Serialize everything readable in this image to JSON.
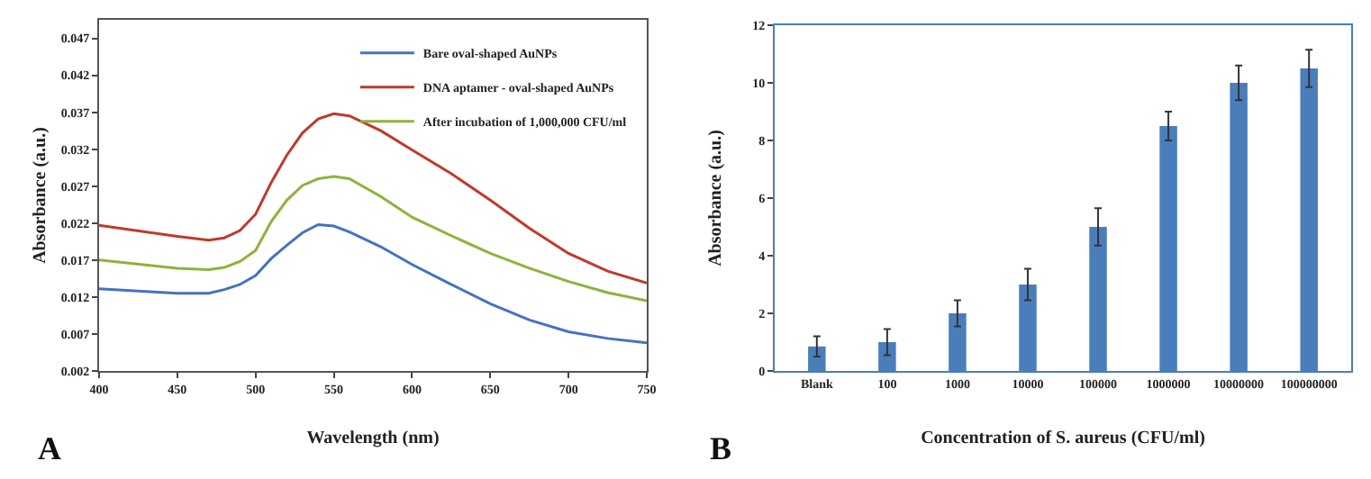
{
  "chart_data": [
    {
      "type": "line",
      "xlabel": "Wavelength (nm)",
      "ylabel": "Absorbance (a.u.)",
      "annotations": [
        "A"
      ],
      "xlim": [
        400,
        750
      ],
      "xticks": [
        400,
        450,
        500,
        550,
        600,
        650,
        700,
        750
      ],
      "ylim": [
        0.002,
        0.0495
      ],
      "yticks": [
        0.002,
        0.007,
        0.012,
        0.017,
        0.022,
        0.027,
        0.032,
        0.037,
        0.042,
        0.047
      ],
      "grid": false,
      "legend": "top right",
      "marker": "none",
      "line_style": "solid",
      "x": [
        400,
        450,
        470,
        480,
        490,
        500,
        510,
        520,
        530,
        540,
        550,
        560,
        580,
        600,
        625,
        650,
        675,
        700,
        725,
        750
      ],
      "series": [
        {
          "name": "Bare oval-shaped AuNPs",
          "color": "#4472c4",
          "values": [
            0.0131,
            0.0125,
            0.0125,
            0.013,
            0.0137,
            0.0149,
            0.0172,
            0.019,
            0.0207,
            0.0218,
            0.0216,
            0.0208,
            0.0188,
            0.0164,
            0.0137,
            0.0111,
            0.0089,
            0.0073,
            0.0064,
            0.0058
          ]
        },
        {
          "name": "DNA aptamer - oval-shaped AuNPs",
          "color": "#c0392b",
          "values": [
            0.0217,
            0.0202,
            0.0197,
            0.02,
            0.021,
            0.0232,
            0.0275,
            0.0312,
            0.0342,
            0.0361,
            0.0368,
            0.0365,
            0.0345,
            0.0319,
            0.0287,
            0.0251,
            0.0213,
            0.0179,
            0.0155,
            0.0139
          ]
        },
        {
          "name": "After incubation of 1,000,000 CFU/ml",
          "color": "#8db33a",
          "values": [
            0.017,
            0.0159,
            0.0157,
            0.016,
            0.0168,
            0.0183,
            0.0222,
            0.0251,
            0.0271,
            0.028,
            0.0283,
            0.028,
            0.0256,
            0.0228,
            0.0203,
            0.0179,
            0.0159,
            0.0141,
            0.0126,
            0.0115
          ]
        }
      ]
    },
    {
      "type": "bar",
      "xlabel": "Concentration of S. aureus (CFU/ml)",
      "ylabel": "Absorbance (a.u.)",
      "annotations": [
        "B"
      ],
      "ylim": [
        0,
        12
      ],
      "yticks": [
        0,
        2,
        4,
        6,
        8,
        10,
        12
      ],
      "grid": false,
      "legend": false,
      "categories": [
        "Blank",
        "100",
        "1000",
        "10000",
        "100000",
        "1000000",
        "10000000",
        "100000000"
      ],
      "series": [
        {
          "color": "#4a7ebb",
          "values": [
            0.85,
            1,
            2,
            3,
            5,
            8.5,
            10,
            10.5
          ],
          "errors": [
            0.35,
            0.45,
            0.45,
            0.55,
            0.65,
            0.5,
            0.6,
            0.65
          ]
        }
      ]
    }
  ]
}
